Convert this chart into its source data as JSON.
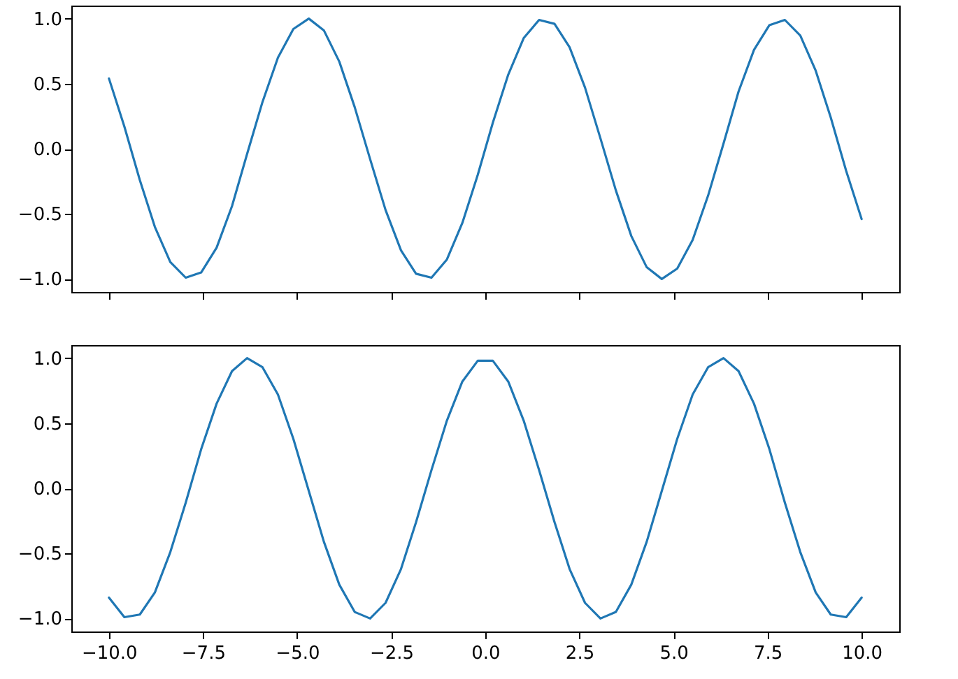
{
  "chart_data": [
    {
      "type": "line",
      "x": [
        -10,
        -9.59,
        -9.18,
        -8.78,
        -8.37,
        -7.96,
        -7.55,
        -7.14,
        -6.73,
        -6.33,
        -5.92,
        -5.51,
        -5.1,
        -4.69,
        -4.29,
        -3.88,
        -3.47,
        -3.06,
        -2.65,
        -2.24,
        -1.84,
        -1.43,
        -1.02,
        -0.61,
        -0.2,
        0.2,
        0.61,
        1.02,
        1.43,
        1.84,
        2.24,
        2.65,
        3.06,
        3.47,
        3.88,
        4.29,
        4.69,
        5.1,
        5.51,
        5.92,
        6.33,
        6.73,
        7.14,
        7.55,
        7.96,
        8.37,
        8.78,
        9.18,
        9.59,
        10
      ],
      "series": [
        {
          "color": "#1f77b4",
          "values": [
            0.54,
            0.17,
            -0.24,
            -0.6,
            -0.87,
            -0.99,
            -0.95,
            -0.76,
            -0.44,
            -0.04,
            0.36,
            0.7,
            0.92,
            1.0,
            0.91,
            0.67,
            0.32,
            -0.08,
            -0.47,
            -0.78,
            -0.96,
            -0.99,
            -0.85,
            -0.57,
            -0.2,
            0.2,
            0.57,
            0.85,
            0.99,
            0.96,
            0.78,
            0.47,
            0.08,
            -0.32,
            -0.67,
            -0.91,
            -1.0,
            -0.92,
            -0.7,
            -0.36,
            0.04,
            0.44,
            0.76,
            0.95,
            0.99,
            0.87,
            0.6,
            0.24,
            -0.17,
            -0.54
          ]
        }
      ],
      "xlim": [
        -11,
        11
      ],
      "xticks": [
        {
          "value": -10,
          "label": null
        },
        {
          "value": -7.5,
          "label": null
        },
        {
          "value": -5,
          "label": null
        },
        {
          "value": -2.5,
          "label": null
        },
        {
          "value": 0,
          "label": null
        },
        {
          "value": 2.5,
          "label": null
        },
        {
          "value": 5,
          "label": null
        },
        {
          "value": 7.5,
          "label": null
        },
        {
          "value": 10,
          "label": null
        }
      ],
      "ylim": [
        -1.1,
        1.1
      ],
      "yticks": [
        {
          "value": -1,
          "label": "−1.0"
        },
        {
          "value": -0.5,
          "label": "−0.5"
        },
        {
          "value": 0,
          "label": "0.0"
        },
        {
          "value": 0.5,
          "label": "0.5"
        },
        {
          "value": 1,
          "label": "1.0"
        }
      ],
      "tick_labels": "y",
      "grid": false,
      "marker": "none",
      "line_style": "solid"
    },
    {
      "type": "line",
      "x": [
        -10,
        -9.59,
        -9.18,
        -8.78,
        -8.37,
        -7.96,
        -7.55,
        -7.14,
        -6.73,
        -6.33,
        -5.92,
        -5.51,
        -5.1,
        -4.69,
        -4.29,
        -3.88,
        -3.47,
        -3.06,
        -2.65,
        -2.24,
        -1.84,
        -1.43,
        -1.02,
        -0.61,
        -0.2,
        0.2,
        0.61,
        1.02,
        1.43,
        1.84,
        2.24,
        2.65,
        3.06,
        3.47,
        3.88,
        4.29,
        4.69,
        5.1,
        5.51,
        5.92,
        6.33,
        6.73,
        7.14,
        7.55,
        7.96,
        8.37,
        8.78,
        9.18,
        9.59,
        10
      ],
      "series": [
        {
          "color": "#1f77b4",
          "values": [
            -0.84,
            -0.99,
            -0.97,
            -0.8,
            -0.49,
            -0.11,
            0.3,
            0.65,
            0.9,
            1.0,
            0.93,
            0.72,
            0.38,
            -0.02,
            -0.41,
            -0.74,
            -0.95,
            -1.0,
            -0.88,
            -0.62,
            -0.26,
            0.14,
            0.52,
            0.82,
            0.98,
            0.98,
            0.82,
            0.52,
            0.14,
            -0.26,
            -0.62,
            -0.88,
            -1.0,
            -0.95,
            -0.74,
            -0.41,
            -0.02,
            0.38,
            0.72,
            0.93,
            1.0,
            0.9,
            0.65,
            0.3,
            -0.11,
            -0.49,
            -0.8,
            -0.97,
            -0.99,
            -0.84
          ]
        }
      ],
      "xlim": [
        -11,
        11
      ],
      "xticks": [
        {
          "value": -10,
          "label": "−10.0"
        },
        {
          "value": -7.5,
          "label": "−7.5"
        },
        {
          "value": -5,
          "label": "−5.0"
        },
        {
          "value": -2.5,
          "label": "−2.5"
        },
        {
          "value": 0,
          "label": "0.0"
        },
        {
          "value": 2.5,
          "label": "2.5"
        },
        {
          "value": 5,
          "label": "5.0"
        },
        {
          "value": 7.5,
          "label": "7.5"
        },
        {
          "value": 10,
          "label": "10.0"
        }
      ],
      "ylim": [
        -1.1,
        1.1
      ],
      "yticks": [
        {
          "value": -1,
          "label": "−1.0"
        },
        {
          "value": -0.5,
          "label": "−0.5"
        },
        {
          "value": 0,
          "label": "0.0"
        },
        {
          "value": 0.5,
          "label": "0.5"
        },
        {
          "value": 1,
          "label": "1.0"
        }
      ],
      "grid": false,
      "marker": "none",
      "line_style": "solid"
    }
  ]
}
